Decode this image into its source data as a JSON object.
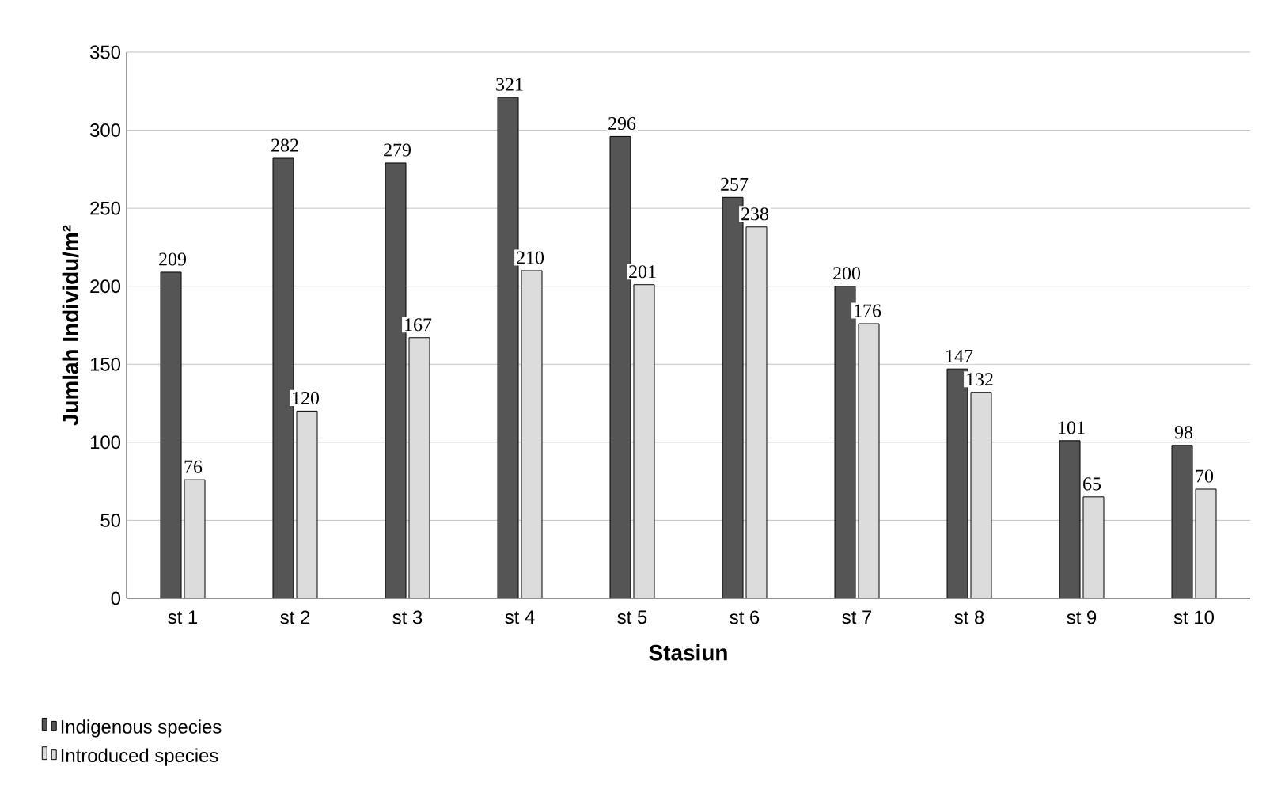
{
  "chart_data": {
    "type": "bar",
    "xlabel": "Stasiun",
    "ylabel": "Jumlah Individu/m²",
    "categories": [
      "st 1",
      "st 2",
      "st 3",
      "st 4",
      "st 5",
      "st 6",
      "st 7",
      "st 8",
      "st 9",
      "st 10"
    ],
    "series": [
      {
        "name": "Indigenous species",
        "color": "#555555",
        "values": [
          209,
          282,
          279,
          321,
          296,
          257,
          200,
          147,
          101,
          98
        ]
      },
      {
        "name": "Introduced species",
        "color": "#dcdcdc",
        "values": [
          76,
          120,
          167,
          210,
          201,
          238,
          176,
          132,
          65,
          70
        ]
      }
    ],
    "ylim": [
      0,
      350
    ],
    "yticks": [
      0,
      50,
      100,
      150,
      200,
      250,
      300,
      350
    ],
    "grid": "y",
    "legend": "bottom left",
    "data_labels": true
  }
}
